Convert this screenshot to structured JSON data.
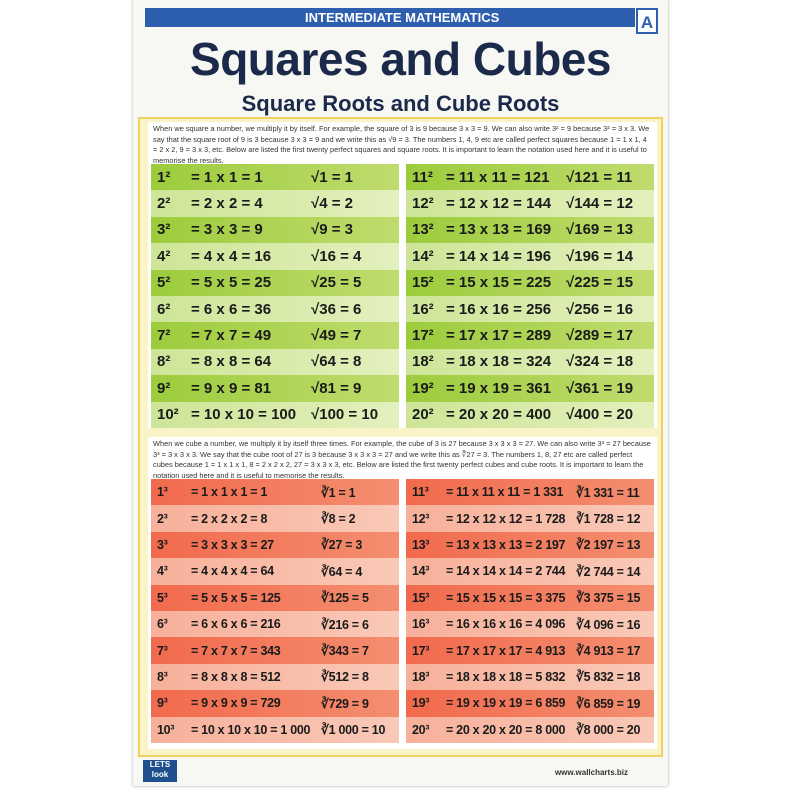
{
  "header": {
    "subject": "INTERMEDIATE MATHEMATICS",
    "badge": "A",
    "title": "Squares and Cubes",
    "subtitle": "Square Roots and Cube Roots"
  },
  "squares": {
    "intro": "When we square a number, we multiply it by itself. For example, the square of 3 is 9 because 3 x 3 = 9. We can also write 3² = 9 because 3² = 3 x 3. We say that the square root of 9 is 3 because 3 x 3 = 9 and we write this as √9 = 3. The numbers 1, 4, 9 etc are called perfect squares because 1 = 1 x 1, 4 = 2 x 2, 9 = 3 x 3, etc. Below are listed the first twenty perfect squares and square roots. It is important to learn the notation used here and it is useful to memorise the results.",
    "rows": [
      {
        "power": "1²",
        "product": "= 1 x 1 = 1",
        "root": "√1 = 1"
      },
      {
        "power": "2²",
        "product": "= 2 x 2 = 4",
        "root": "√4 = 2"
      },
      {
        "power": "3²",
        "product": "= 3 x 3 = 9",
        "root": "√9 = 3"
      },
      {
        "power": "4²",
        "product": "= 4 x 4 = 16",
        "root": "√16 = 4"
      },
      {
        "power": "5²",
        "product": "= 5 x 5 = 25",
        "root": "√25 = 5"
      },
      {
        "power": "6²",
        "product": "= 6 x 6 = 36",
        "root": "√36 = 6"
      },
      {
        "power": "7²",
        "product": "= 7 x 7 = 49",
        "root": "√49 = 7"
      },
      {
        "power": "8²",
        "product": "= 8 x 8 = 64",
        "root": "√64 = 8"
      },
      {
        "power": "9²",
        "product": "= 9 x 9 = 81",
        "root": "√81 = 9"
      },
      {
        "power": "10²",
        "product": "= 10 x 10 = 100",
        "root": "√100 = 10"
      },
      {
        "power": "11²",
        "product": "= 11 x 11 = 121",
        "root": "√121 = 11"
      },
      {
        "power": "12²",
        "product": "= 12 x 12 = 144",
        "root": "√144 = 12"
      },
      {
        "power": "13²",
        "product": "= 13 x 13 = 169",
        "root": "√169 = 13"
      },
      {
        "power": "14²",
        "product": "= 14 x 14 = 196",
        "root": "√196 = 14"
      },
      {
        "power": "15²",
        "product": "= 15 x 15 = 225",
        "root": "√225 = 15"
      },
      {
        "power": "16²",
        "product": "= 16 x 16 = 256",
        "root": "√256 = 16"
      },
      {
        "power": "17²",
        "product": "= 17 x 17 = 289",
        "root": "√289 = 17"
      },
      {
        "power": "18²",
        "product": "= 18 x 18 = 324",
        "root": "√324 = 18"
      },
      {
        "power": "19²",
        "product": "= 19 x 19 = 361",
        "root": "√361 = 19"
      },
      {
        "power": "20²",
        "product": "= 20 x 20 = 400",
        "root": "√400 = 20"
      }
    ]
  },
  "cubes": {
    "intro": "When we cube a number, we multiply it by itself three times. For example, the cube of 3 is 27 because 3 x 3 x 3 = 27. We can also write 3³ = 27 because 3³ = 3 x 3 x 3. We say that the cube root of 27 is 3 because 3 x 3 x 3 = 27 and we write this as ∛27 = 3. The numbers 1, 8, 27 etc are called perfect cubes because 1 = 1 x 1 x 1, 8 = 2 x 2 x 2, 27 = 3 x 3 x 3, etc. Below are listed the first twenty perfect cubes and cube roots. It is important to learn the notation used here and it is useful to memorise the results.",
    "rows": [
      {
        "power": "1³",
        "product": "= 1 x 1 x 1 = 1",
        "root": "∛1 = 1"
      },
      {
        "power": "2³",
        "product": "= 2 x 2 x 2 = 8",
        "root": "∛8 = 2"
      },
      {
        "power": "3³",
        "product": "= 3 x 3 x 3 = 27",
        "root": "∛27 = 3"
      },
      {
        "power": "4³",
        "product": "= 4 x 4 x 4 = 64",
        "root": "∛64 = 4"
      },
      {
        "power": "5³",
        "product": "= 5 x 5 x 5 = 125",
        "root": "∛125 = 5"
      },
      {
        "power": "6³",
        "product": "= 6 x 6 x 6 = 216",
        "root": "∛216 = 6"
      },
      {
        "power": "7³",
        "product": "= 7 x 7 x 7 = 343",
        "root": "∛343 = 7"
      },
      {
        "power": "8³",
        "product": "= 8 x 8 x 8 = 512",
        "root": "∛512 = 8"
      },
      {
        "power": "9³",
        "product": "= 9 x 9 x 9 = 729",
        "root": "∛729 = 9"
      },
      {
        "power": "10³",
        "product": "= 10 x 10 x 10 = 1 000",
        "root": "∛1 000 = 10"
      },
      {
        "power": "11³",
        "product": "= 11 x 11 x 11 = 1 331",
        "root": "∛1 331 = 11"
      },
      {
        "power": "12³",
        "product": "= 12 x 12 x 12 = 1 728",
        "root": "∛1 728 = 12"
      },
      {
        "power": "13³",
        "product": "= 13 x 13 x 13 = 2 197",
        "root": "∛2 197 = 13"
      },
      {
        "power": "14³",
        "product": "= 14 x 14 x 14 = 2 744",
        "root": "∛2 744 = 14"
      },
      {
        "power": "15³",
        "product": "= 15 x 15 x 15 = 3 375",
        "root": "∛3 375 = 15"
      },
      {
        "power": "16³",
        "product": "= 16 x 16 x 16 = 4 096",
        "root": "∛4 096 = 16"
      },
      {
        "power": "17³",
        "product": "= 17 x 17 x 17 = 4 913",
        "root": "∛4 913 = 17"
      },
      {
        "power": "18³",
        "product": "= 18 x 18 x 18 = 5 832",
        "root": "∛5 832 = 18"
      },
      {
        "power": "19³",
        "product": "= 19 x 19 x 19 = 6 859",
        "root": "∛6 859 = 19"
      },
      {
        "power": "20³",
        "product": "= 20 x 20 x 20 = 8 000",
        "root": "∛8 000 = 20"
      }
    ]
  },
  "footer": {
    "logo_top": "LETS",
    "logo_bottom": "look",
    "website": "www.wallcharts.biz"
  }
}
